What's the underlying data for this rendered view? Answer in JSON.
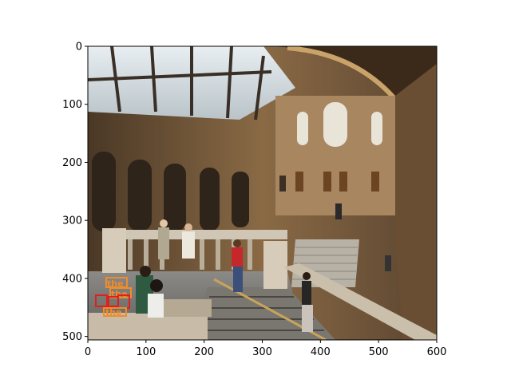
{
  "figure": {
    "x_ticks": [
      "0",
      "100",
      "200",
      "300",
      "400",
      "500",
      "600"
    ],
    "y_ticks": [
      "0",
      "100",
      "200",
      "300",
      "400",
      "500"
    ],
    "x_tick_values": [
      0,
      100,
      200,
      300,
      400,
      500,
      600
    ],
    "y_tick_values": [
      0,
      100,
      200,
      300,
      400,
      500
    ],
    "x_range": [
      0,
      600
    ],
    "y_range": [
      506,
      0
    ]
  },
  "annotations": {
    "labels": [
      "the",
      "the",
      "the"
    ],
    "label_color": "#f08c2a",
    "box_color": "#e0201c"
  }
}
